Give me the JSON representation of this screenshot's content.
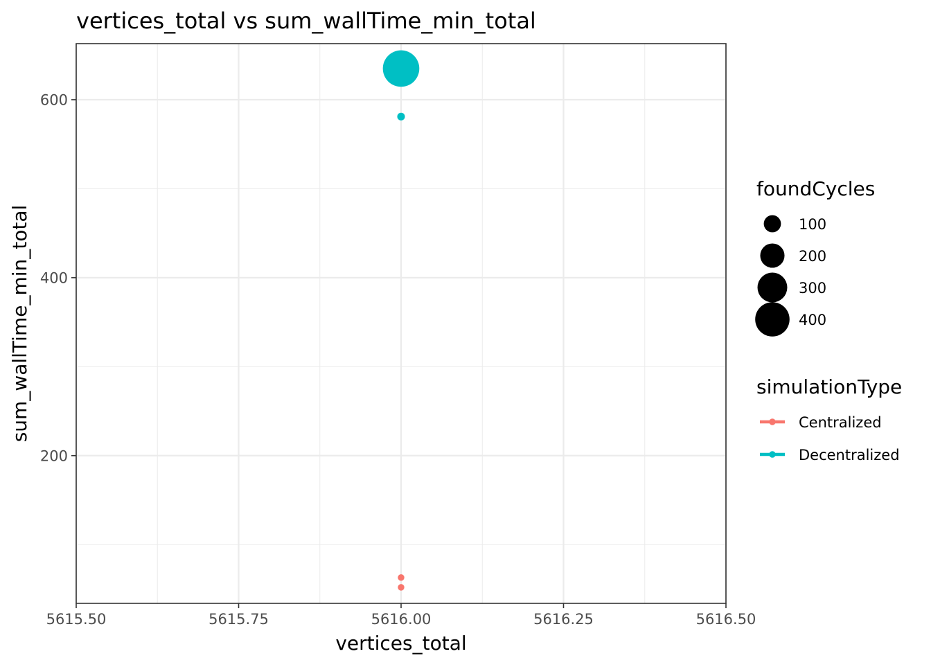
{
  "chart_data": {
    "type": "scatter",
    "title": "vertices_total  vs  sum_wallTime_min_total",
    "xlabel": "vertices_total",
    "ylabel": "sum_wallTime_min_total",
    "xlim": [
      5615.5,
      5616.5
    ],
    "ylim": [
      34,
      663
    ],
    "x_ticks": [
      "5615.50",
      "5615.75",
      "5616.00",
      "5616.25",
      "5616.50"
    ],
    "x_tick_values": [
      5615.5,
      5615.75,
      5616.0,
      5616.25,
      5616.5
    ],
    "y_ticks": [
      "200",
      "400",
      "600"
    ],
    "y_tick_values": [
      200,
      400,
      600
    ],
    "grid": true,
    "legend_position": "right",
    "size_legend": {
      "title": "foundCycles",
      "entries": [
        {
          "label": "100",
          "value": 100
        },
        {
          "label": "200",
          "value": 200
        },
        {
          "label": "300",
          "value": 300
        },
        {
          "label": "400",
          "value": 400
        }
      ]
    },
    "color_legend": {
      "title": "simulationType",
      "entries": [
        {
          "label": "Centralized",
          "color": "#F8766D"
        },
        {
          "label": "Decentralized",
          "color": "#00BFC4"
        }
      ]
    },
    "series": [
      {
        "name": "Centralized",
        "color": "#F8766D",
        "points": [
          {
            "x": 5616.0,
            "y": 63,
            "foundCycles": 10
          },
          {
            "x": 5616.0,
            "y": 52,
            "foundCycles": 10
          }
        ]
      },
      {
        "name": "Decentralized",
        "color": "#00BFC4",
        "points": [
          {
            "x": 5616.0,
            "y": 635,
            "foundCycles": 450
          },
          {
            "x": 5616.0,
            "y": 581,
            "foundCycles": 20
          }
        ]
      }
    ]
  }
}
